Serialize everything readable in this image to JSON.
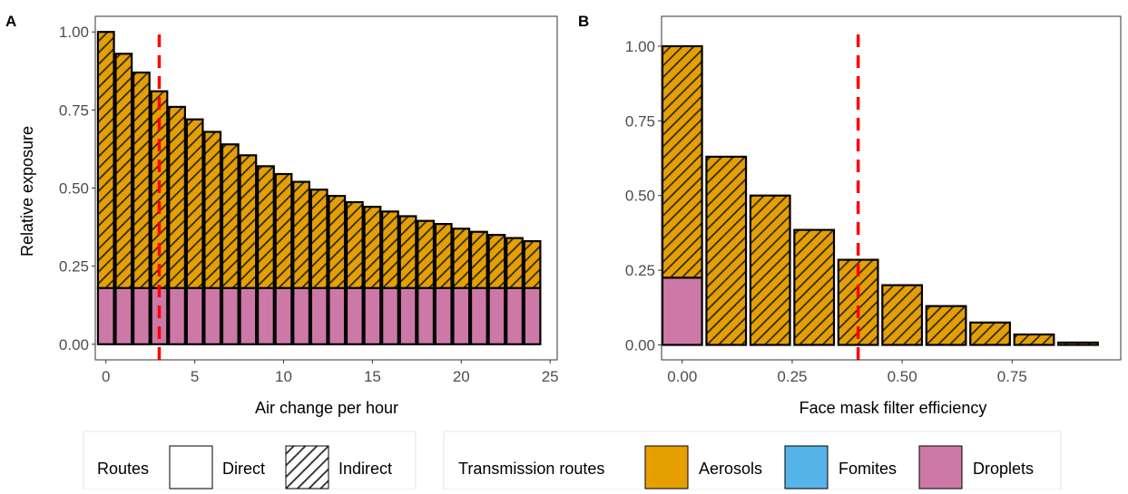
{
  "colors": {
    "aerosols": "#E69F00",
    "fomites": "#56B4E9",
    "droplets": "#CC79A7",
    "threshold_line": "#FF0000",
    "bar_outline": "#000000",
    "hatch": "#2b2b2b"
  },
  "legend": {
    "routes_title": "Routes",
    "routes": [
      {
        "label": "Direct",
        "pattern": "solid"
      },
      {
        "label": "Indirect",
        "pattern": "hatched"
      }
    ],
    "transmission_title": "Transmission routes",
    "transmission": [
      {
        "label": "Aerosols",
        "color_key": "aerosols"
      },
      {
        "label": "Fomites",
        "color_key": "fomites"
      },
      {
        "label": "Droplets",
        "color_key": "droplets"
      }
    ]
  },
  "chart_data": [
    {
      "panel": "A",
      "type": "bar",
      "stacked": true,
      "xlabel": "Air change per hour",
      "ylabel": "Relative exposure",
      "xlim": [
        -0.6,
        25.4
      ],
      "ylim": [
        -0.05,
        1.05
      ],
      "bar_width": 0.9,
      "xticks": [
        0,
        5,
        10,
        15,
        20,
        25
      ],
      "xtick_labels": [
        "0",
        "5",
        "10",
        "15",
        "20",
        "25"
      ],
      "yticks": [
        0,
        0.25,
        0.5,
        0.75,
        1.0
      ],
      "ytick_labels": [
        "0.00",
        "0.25",
        "0.50",
        "0.75",
        "1.00"
      ],
      "vline": 3,
      "x": [
        0,
        1,
        2,
        3,
        4,
        5,
        6,
        7,
        8,
        9,
        10,
        11,
        12,
        13,
        14,
        15,
        16,
        17,
        18,
        19,
        20,
        21,
        22,
        23,
        24
      ],
      "series": [
        {
          "name": "Droplets",
          "route": "Direct",
          "values": [
            0.18,
            0.18,
            0.18,
            0.18,
            0.18,
            0.18,
            0.18,
            0.18,
            0.18,
            0.18,
            0.18,
            0.18,
            0.18,
            0.18,
            0.18,
            0.18,
            0.18,
            0.18,
            0.18,
            0.18,
            0.18,
            0.18,
            0.18,
            0.18,
            0.18
          ]
        },
        {
          "name": "Aerosols",
          "route": "Indirect",
          "values": [
            0.82,
            0.75,
            0.69,
            0.63,
            0.58,
            0.54,
            0.5,
            0.46,
            0.425,
            0.39,
            0.365,
            0.34,
            0.315,
            0.295,
            0.275,
            0.26,
            0.245,
            0.23,
            0.215,
            0.205,
            0.19,
            0.18,
            0.17,
            0.16,
            0.15
          ]
        }
      ]
    },
    {
      "panel": "B",
      "type": "bar",
      "stacked": true,
      "xlabel": "Face mask filter efficiency",
      "ylabel": "",
      "xlim": [
        -0.047,
        0.997
      ],
      "ylim": [
        -0.05,
        1.1
      ],
      "bar_width": 0.09,
      "xticks": [
        0,
        0.25,
        0.5,
        0.75
      ],
      "xtick_labels": [
        "0.00",
        "0.25",
        "0.50",
        "0.75"
      ],
      "yticks": [
        0,
        0.25,
        0.5,
        0.75,
        1.0
      ],
      "ytick_labels": [
        "0.00",
        "0.25",
        "0.50",
        "0.75",
        "1.00"
      ],
      "vline": 0.4,
      "x": [
        0.0,
        0.1,
        0.2,
        0.3,
        0.4,
        0.5,
        0.6,
        0.7,
        0.8,
        0.9
      ],
      "series": [
        {
          "name": "Droplets",
          "route": "Direct",
          "values": [
            0.225,
            0,
            0,
            0,
            0,
            0,
            0,
            0,
            0,
            0
          ]
        },
        {
          "name": "Aerosols",
          "route": "Indirect",
          "values": [
            0.775,
            0.63,
            0.5,
            0.385,
            0.285,
            0.2,
            0.13,
            0.075,
            0.035,
            0.008
          ]
        }
      ]
    }
  ]
}
